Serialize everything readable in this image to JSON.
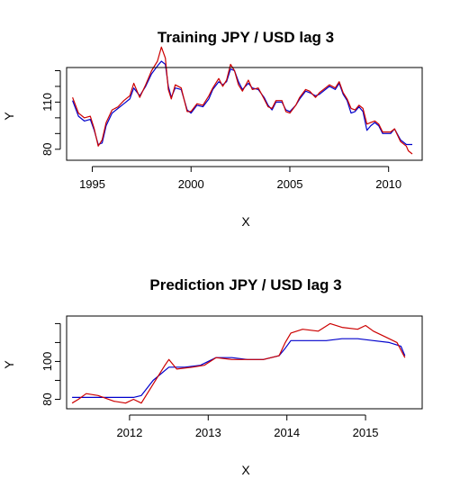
{
  "chart_data": [
    {
      "type": "line",
      "title": "Training  JPY / USD lag 3",
      "xlabel": "X",
      "ylabel": "Y",
      "xlim": [
        1993.7,
        2011.7
      ],
      "ylim": [
        73,
        132
      ],
      "xticks": [
        1995,
        2000,
        2005,
        2010
      ],
      "xtick_labels": [
        "1995",
        "2000",
        "2005",
        "2010"
      ],
      "yticks": [
        80,
        90,
        100,
        110,
        120,
        130
      ],
      "ytick_labels": [
        "80",
        "",
        "",
        "110",
        "",
        ""
      ],
      "grid": false,
      "series": [
        {
          "color": "#0000cc",
          "points": [
            [
              1994.0,
              111
            ],
            [
              1994.3,
              101
            ],
            [
              1994.6,
              98
            ],
            [
              1994.9,
              99
            ],
            [
              1995.1,
              92
            ],
            [
              1995.3,
              83
            ],
            [
              1995.5,
              84
            ],
            [
              1995.7,
              95
            ],
            [
              1996.0,
              103
            ],
            [
              1996.3,
              106
            ],
            [
              1996.6,
              109
            ],
            [
              1996.9,
              112
            ],
            [
              1997.1,
              119
            ],
            [
              1997.4,
              114
            ],
            [
              1997.7,
              120
            ],
            [
              1998.0,
              128
            ],
            [
              1998.3,
              133
            ],
            [
              1998.5,
              136
            ],
            [
              1998.7,
              134
            ],
            [
              1998.85,
              120
            ],
            [
              1999.0,
              113
            ],
            [
              1999.2,
              119
            ],
            [
              1999.5,
              118
            ],
            [
              1999.8,
              105
            ],
            [
              2000.0,
              103
            ],
            [
              2000.3,
              108
            ],
            [
              2000.6,
              107
            ],
            [
              2000.9,
              112
            ],
            [
              2001.1,
              118
            ],
            [
              2001.4,
              123
            ],
            [
              2001.6,
              121
            ],
            [
              2001.8,
              123
            ],
            [
              2002.0,
              131
            ],
            [
              2002.2,
              130
            ],
            [
              2002.4,
              123
            ],
            [
              2002.6,
              118
            ],
            [
              2002.9,
              122
            ],
            [
              2003.1,
              119
            ],
            [
              2003.4,
              118
            ],
            [
              2003.7,
              113
            ],
            [
              2003.9,
              108
            ],
            [
              2004.1,
              105
            ],
            [
              2004.3,
              110
            ],
            [
              2004.6,
              110
            ],
            [
              2004.8,
              105
            ],
            [
              2005.0,
              104
            ],
            [
              2005.3,
              108
            ],
            [
              2005.5,
              112
            ],
            [
              2005.8,
              117
            ],
            [
              2006.0,
              116
            ],
            [
              2006.3,
              114
            ],
            [
              2006.5,
              115
            ],
            [
              2006.8,
              118
            ],
            [
              2007.0,
              120
            ],
            [
              2007.3,
              118
            ],
            [
              2007.5,
              122
            ],
            [
              2007.7,
              115
            ],
            [
              2007.9,
              111
            ],
            [
              2008.1,
              103
            ],
            [
              2008.3,
              104
            ],
            [
              2008.5,
              107
            ],
            [
              2008.7,
              104
            ],
            [
              2008.9,
              92
            ],
            [
              2009.1,
              95
            ],
            [
              2009.3,
              97
            ],
            [
              2009.5,
              95
            ],
            [
              2009.7,
              90
            ],
            [
              2009.9,
              90
            ],
            [
              2010.1,
              90
            ],
            [
              2010.3,
              93
            ],
            [
              2010.6,
              86
            ],
            [
              2010.9,
              83
            ],
            [
              2011.0,
              83
            ],
            [
              2011.2,
              83
            ]
          ]
        },
        {
          "color": "#cc0000",
          "points": [
            [
              1994.0,
              113
            ],
            [
              1994.3,
              103
            ],
            [
              1994.6,
              100
            ],
            [
              1994.9,
              101
            ],
            [
              1995.1,
              93
            ],
            [
              1995.3,
              82
            ],
            [
              1995.5,
              86
            ],
            [
              1995.7,
              97
            ],
            [
              1996.0,
              105
            ],
            [
              1996.3,
              107
            ],
            [
              1996.6,
              111
            ],
            [
              1996.9,
              114
            ],
            [
              1997.1,
              122
            ],
            [
              1997.4,
              113
            ],
            [
              1997.7,
              121
            ],
            [
              1998.0,
              130
            ],
            [
              1998.3,
              136
            ],
            [
              1998.5,
              145
            ],
            [
              1998.7,
              138
            ],
            [
              1998.85,
              118
            ],
            [
              1999.0,
              112
            ],
            [
              1999.2,
              121
            ],
            [
              1999.5,
              119
            ],
            [
              1999.8,
              104
            ],
            [
              2000.0,
              104
            ],
            [
              2000.3,
              109
            ],
            [
              2000.6,
              108
            ],
            [
              2000.9,
              114
            ],
            [
              2001.1,
              119
            ],
            [
              2001.4,
              125
            ],
            [
              2001.6,
              120
            ],
            [
              2001.8,
              124
            ],
            [
              2002.0,
              134
            ],
            [
              2002.2,
              130
            ],
            [
              2002.4,
              121
            ],
            [
              2002.6,
              117
            ],
            [
              2002.9,
              124
            ],
            [
              2003.1,
              118
            ],
            [
              2003.4,
              119
            ],
            [
              2003.7,
              112
            ],
            [
              2003.9,
              107
            ],
            [
              2004.1,
              106
            ],
            [
              2004.3,
              111
            ],
            [
              2004.6,
              111
            ],
            [
              2004.8,
              104
            ],
            [
              2005.0,
              103
            ],
            [
              2005.3,
              108
            ],
            [
              2005.5,
              113
            ],
            [
              2005.8,
              118
            ],
            [
              2006.0,
              117
            ],
            [
              2006.3,
              113
            ],
            [
              2006.5,
              116
            ],
            [
              2006.8,
              119
            ],
            [
              2007.0,
              121
            ],
            [
              2007.3,
              119
            ],
            [
              2007.5,
              123
            ],
            [
              2007.7,
              116
            ],
            [
              2007.9,
              112
            ],
            [
              2008.1,
              106
            ],
            [
              2008.3,
              105
            ],
            [
              2008.5,
              108
            ],
            [
              2008.7,
              106
            ],
            [
              2008.9,
              96
            ],
            [
              2009.1,
              97
            ],
            [
              2009.3,
              98
            ],
            [
              2009.5,
              96
            ],
            [
              2009.7,
              91
            ],
            [
              2009.9,
              91
            ],
            [
              2010.1,
              91
            ],
            [
              2010.3,
              93
            ],
            [
              2010.6,
              85
            ],
            [
              2010.9,
              82
            ],
            [
              2011.0,
              79
            ],
            [
              2011.2,
              77
            ]
          ]
        }
      ]
    },
    {
      "type": "line",
      "title": "Prediction JPY / USD lag 3",
      "xlabel": "X",
      "ylabel": "Y",
      "xlim": [
        2011.2,
        2015.72
      ],
      "ylim": [
        75,
        124
      ],
      "xticks": [
        2012,
        2013,
        2014,
        2015
      ],
      "xtick_labels": [
        "2012",
        "2013",
        "2014",
        "2015"
      ],
      "yticks": [
        80,
        90,
        100,
        110,
        120
      ],
      "ytick_labels": [
        "80",
        "",
        "100",
        "",
        ""
      ],
      "grid": false,
      "series": [
        {
          "color": "#0000cc",
          "points": [
            [
              2011.27,
              81
            ],
            [
              2011.4,
              81
            ],
            [
              2011.6,
              81
            ],
            [
              2011.8,
              81
            ],
            [
              2011.95,
              81
            ],
            [
              2012.05,
              81
            ],
            [
              2012.15,
              82
            ],
            [
              2012.3,
              90
            ],
            [
              2012.5,
              97
            ],
            [
              2012.7,
              97
            ],
            [
              2012.9,
              98
            ],
            [
              2013.1,
              102
            ],
            [
              2013.3,
              102
            ],
            [
              2013.5,
              101
            ],
            [
              2013.7,
              101
            ],
            [
              2013.9,
              103
            ],
            [
              2013.98,
              107
            ],
            [
              2014.05,
              111
            ],
            [
              2014.2,
              111
            ],
            [
              2014.5,
              111
            ],
            [
              2014.7,
              112
            ],
            [
              2014.9,
              112
            ],
            [
              2015.1,
              111
            ],
            [
              2015.3,
              110
            ],
            [
              2015.45,
              108
            ],
            [
              2015.5,
              103
            ]
          ]
        },
        {
          "color": "#cc0000",
          "points": [
            [
              2011.27,
              78
            ],
            [
              2011.35,
              80
            ],
            [
              2011.45,
              83
            ],
            [
              2011.6,
              82
            ],
            [
              2011.8,
              79
            ],
            [
              2011.95,
              78
            ],
            [
              2012.05,
              80
            ],
            [
              2012.15,
              78
            ],
            [
              2012.3,
              88
            ],
            [
              2012.45,
              98
            ],
            [
              2012.5,
              101
            ],
            [
              2012.6,
              96
            ],
            [
              2012.8,
              97
            ],
            [
              2012.95,
              98
            ],
            [
              2013.1,
              102
            ],
            [
              2013.3,
              101
            ],
            [
              2013.5,
              101
            ],
            [
              2013.7,
              101
            ],
            [
              2013.9,
              103
            ],
            [
              2013.98,
              110
            ],
            [
              2014.05,
              115
            ],
            [
              2014.2,
              117
            ],
            [
              2014.4,
              116
            ],
            [
              2014.55,
              120
            ],
            [
              2014.7,
              118
            ],
            [
              2014.9,
              117
            ],
            [
              2015.0,
              119
            ],
            [
              2015.1,
              116
            ],
            [
              2015.25,
              113
            ],
            [
              2015.4,
              110
            ],
            [
              2015.5,
              102
            ]
          ]
        }
      ]
    }
  ]
}
